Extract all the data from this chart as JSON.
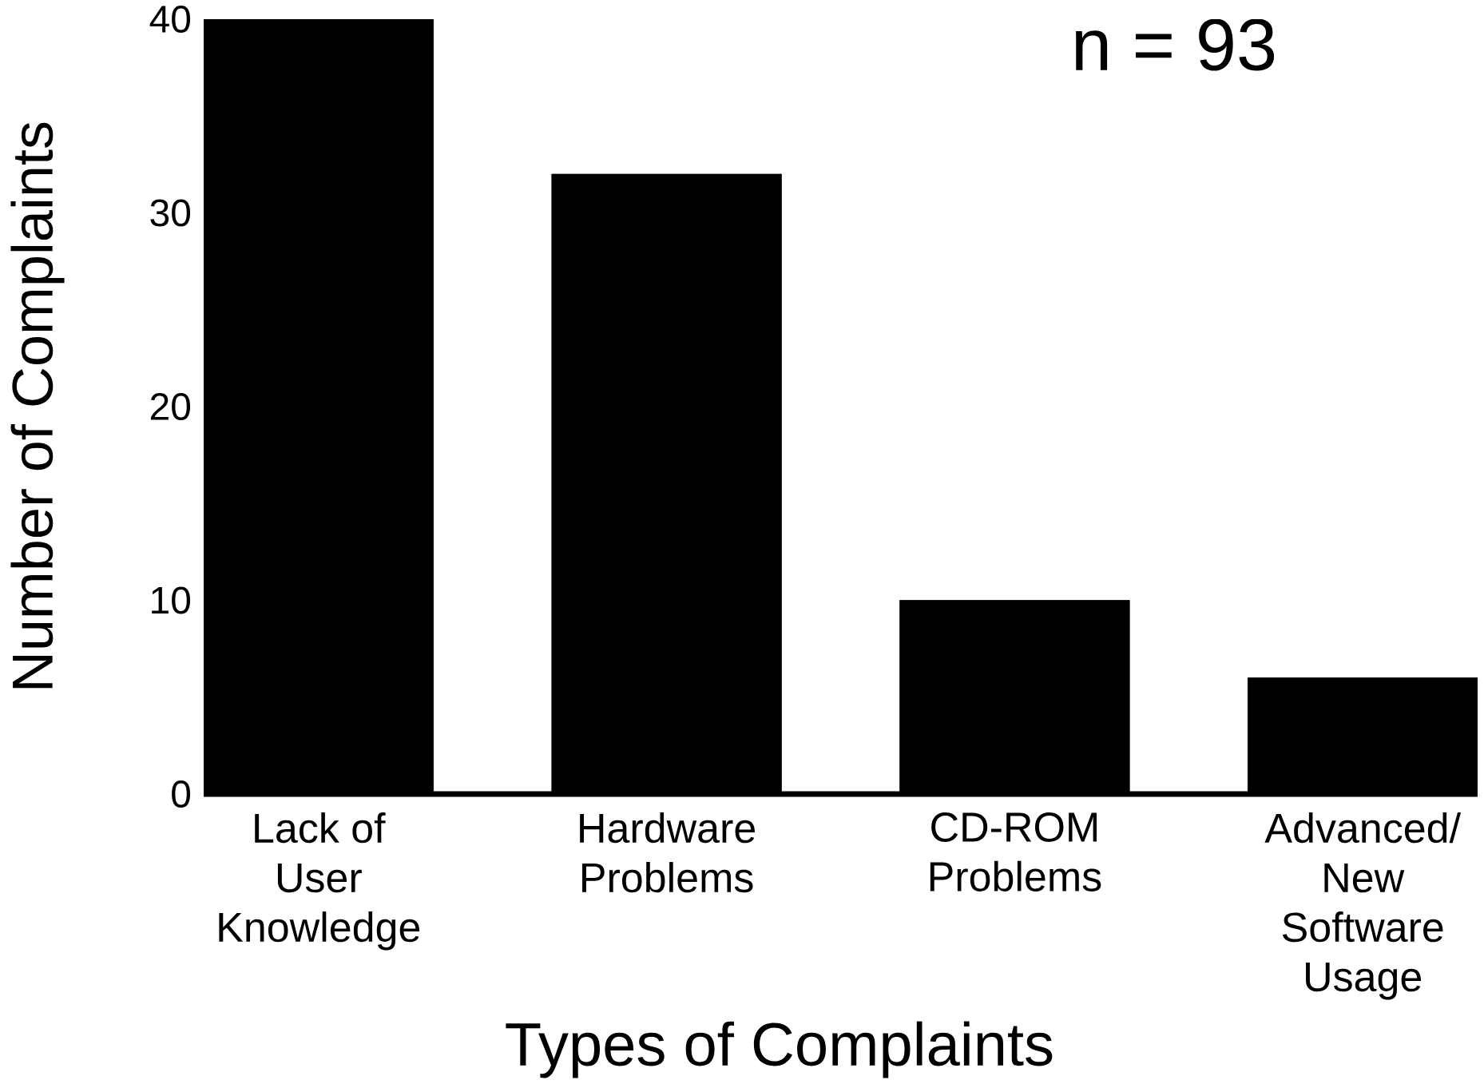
{
  "chart_data": {
    "type": "bar",
    "xlabel": "Types of Complaints",
    "ylabel": "Number of Complaints",
    "categories": [
      "Lack of User Knowledge",
      "Hardware Problems",
      "CD-ROM Problems",
      "Advanced/ New Software Usage"
    ],
    "values": [
      40,
      32,
      10,
      6
    ],
    "color": "#000000",
    "ylim": [
      0,
      40
    ],
    "yticks": [
      0,
      10,
      20,
      30,
      40
    ],
    "annotations": [
      "n = 93"
    ]
  }
}
